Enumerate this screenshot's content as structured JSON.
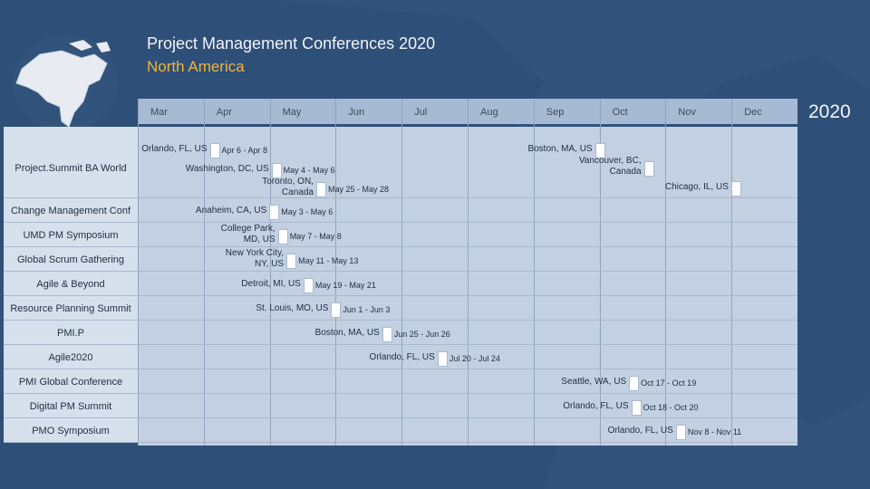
{
  "header": {
    "title": "Project Management Conferences 2020",
    "subtitle": "North America",
    "year": "2020"
  },
  "colors": {
    "background": "#2e4f77",
    "accent": "#f0b43a",
    "header_band": "#a7bad3",
    "rows_band": "#c3d0e1",
    "marker": "#ffffff"
  },
  "chart_data": {
    "type": "table",
    "title": "Project Management Conferences 2020",
    "months": [
      "Mar",
      "Apr",
      "May",
      "Jun",
      "Jul",
      "Aug",
      "Sep",
      "Oct",
      "Nov",
      "Dec"
    ],
    "rows": [
      {
        "name": "Project.Summit BA World",
        "events": [
          {
            "location": "Orlando, FL, US",
            "dates": "Apr 6 - Apr 8",
            "month": 4,
            "day": 6
          },
          {
            "location": "Washington, DC, US",
            "dates": "May 4 - May 6",
            "month": 5,
            "day": 4
          },
          {
            "location": "Toronto, ON, Canada",
            "dates": "May 25 - May 28",
            "month": 5,
            "day": 25
          },
          {
            "location": "Boston, MA, US",
            "dates": "",
            "month": 10,
            "day": 1
          },
          {
            "location": "Vancouver, BC, Canada",
            "dates": "",
            "month": 10,
            "day": 24
          },
          {
            "location": "Chicago, IL, US",
            "dates": "",
            "month": 12,
            "day": 3
          }
        ]
      },
      {
        "name": "Change Management Conf",
        "events": [
          {
            "location": "Anaheim, CA, US",
            "dates": "May 3 - May 6",
            "month": 5,
            "day": 3
          }
        ]
      },
      {
        "name": "UMD PM Symposium",
        "events": [
          {
            "location": "College Park, MD, US",
            "dates": "May 7 - May 8",
            "month": 5,
            "day": 7
          }
        ]
      },
      {
        "name": "Global Scrum Gathering",
        "events": [
          {
            "location": "New York City, NY, US",
            "dates": "May 11 - May 13",
            "month": 5,
            "day": 11
          }
        ]
      },
      {
        "name": "Agile & Beyond",
        "events": [
          {
            "location": "Detroit, MI, US",
            "dates": "May 19 - May 21",
            "month": 5,
            "day": 19
          }
        ]
      },
      {
        "name": "Resource Planning Summit",
        "events": [
          {
            "location": "St. Louis, MO, US",
            "dates": "Jun 1 - Jun 3",
            "month": 6,
            "day": 1
          }
        ]
      },
      {
        "name": "PMI.P",
        "events": [
          {
            "location": "Boston, MA, US",
            "dates": "Jun 25 - Jun 26",
            "month": 6,
            "day": 25
          }
        ]
      },
      {
        "name": "Agile2020",
        "events": [
          {
            "location": "Orlando, FL, US",
            "dates": "Jul 20 - Jul 24",
            "month": 7,
            "day": 20
          }
        ]
      },
      {
        "name": "PMI Global Conference",
        "events": [
          {
            "location": "Seattle, WA, US",
            "dates": "Oct 17 - Oct 19",
            "month": 10,
            "day": 17
          }
        ]
      },
      {
        "name": "Digital PM Summit",
        "events": [
          {
            "location": "Orlando, FL, US",
            "dates": "Oct 18 - Oct 20",
            "month": 10,
            "day": 18
          }
        ]
      },
      {
        "name": "PMO Symposium",
        "events": [
          {
            "location": "Orlando, FL, US",
            "dates": "Nov 8 - Nov 11",
            "month": 11,
            "day": 8
          }
        ]
      }
    ]
  }
}
